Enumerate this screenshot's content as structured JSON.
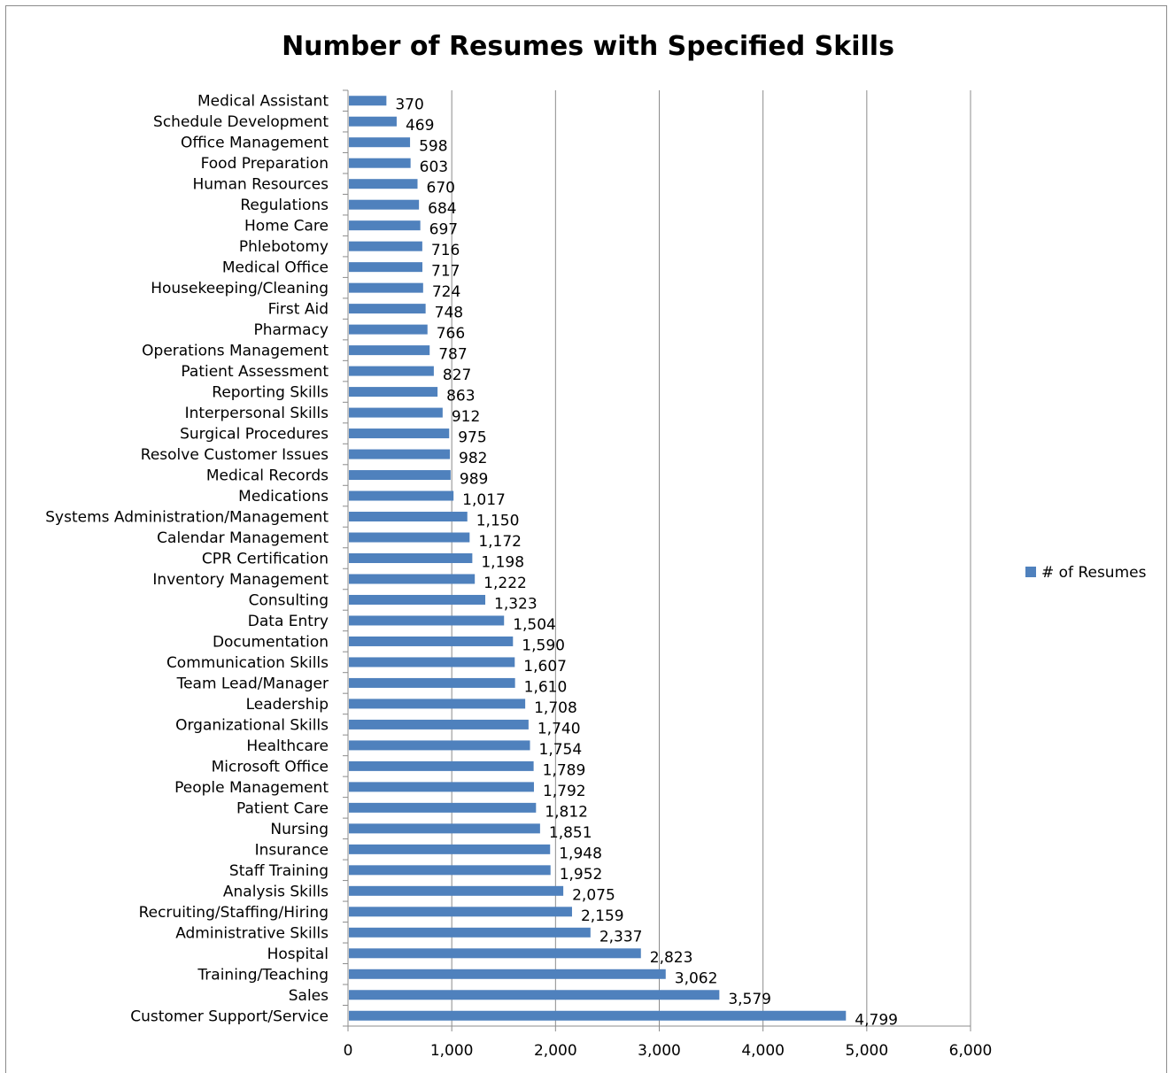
{
  "chart_data": {
    "type": "bar",
    "orientation": "horizontal",
    "title": "Number of Resumes with Specified Skills",
    "xlabel": "",
    "ylabel": "",
    "xlim": [
      0,
      6000
    ],
    "x_ticks": [
      0,
      1000,
      2000,
      3000,
      4000,
      5000,
      6000
    ],
    "x_tick_labels": [
      "0",
      "1,000",
      "2,000",
      "3,000",
      "4,000",
      "5,000",
      "6,000"
    ],
    "grid": "vertical major gridlines",
    "legend_position": "right",
    "bar_color": "#4f81bd",
    "categories": [
      "Medical Assistant",
      "Schedule Development",
      "Office Management",
      "Food Preparation",
      "Human Resources",
      "Regulations",
      "Home Care",
      "Phlebotomy",
      "Medical Office",
      "Housekeeping/Cleaning",
      "First Aid",
      "Pharmacy",
      "Operations Management",
      "Patient Assessment",
      "Reporting Skills",
      "Interpersonal Skills",
      "Surgical Procedures",
      "Resolve Customer Issues",
      "Medical Records",
      "Medications",
      "Systems Administration/Management",
      "Calendar Management",
      "CPR Certification",
      "Inventory Management",
      "Consulting",
      "Data Entry",
      "Documentation",
      "Communication Skills",
      "Team Lead/Manager",
      "Leadership",
      "Organizational Skills",
      "Healthcare",
      "Microsoft Office",
      "People Management",
      "Patient Care",
      "Nursing",
      "Insurance",
      "Staff Training",
      "Analysis Skills",
      "Recruiting/Staffing/Hiring",
      "Administrative Skills",
      "Hospital",
      "Training/Teaching",
      "Sales",
      "Customer Support/Service"
    ],
    "series": [
      {
        "name": "# of Resumes",
        "values": [
          370,
          469,
          598,
          603,
          670,
          684,
          697,
          716,
          717,
          724,
          748,
          766,
          787,
          827,
          863,
          912,
          975,
          982,
          989,
          1017,
          1150,
          1172,
          1198,
          1222,
          1323,
          1504,
          1590,
          1607,
          1610,
          1708,
          1740,
          1754,
          1789,
          1792,
          1812,
          1851,
          1948,
          1952,
          2075,
          2159,
          2337,
          2823,
          3062,
          3579,
          4799
        ],
        "value_labels": [
          "370",
          "469",
          "598",
          "603",
          "670",
          "684",
          "697",
          "716",
          "717",
          "724",
          "748",
          "766",
          "787",
          "827",
          "863",
          "912",
          "975",
          "982",
          "989",
          "1,017",
          "1,150",
          "1,172",
          "1,198",
          "1,222",
          "1,323",
          "1,504",
          "1,590",
          "1,607",
          "1,610",
          "1,708",
          "1,740",
          "1,754",
          "1,789",
          "1,792",
          "1,812",
          "1,851",
          "1,948",
          "1,952",
          "2,075",
          "2,159",
          "2,337",
          "2,823",
          "3,062",
          "3,579",
          "4,799"
        ]
      }
    ]
  }
}
